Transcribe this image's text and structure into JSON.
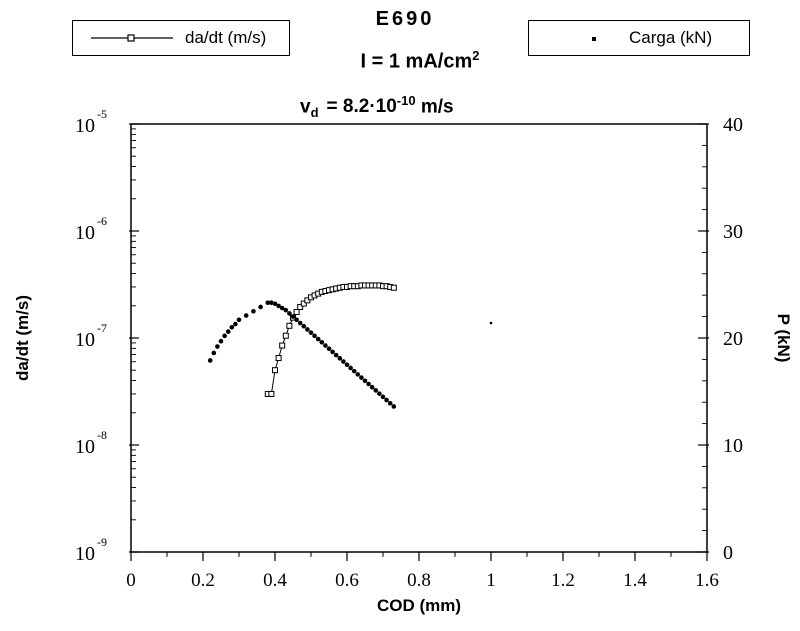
{
  "chart_data": {
    "type": "scatter",
    "title": "E690",
    "subtitle_current": "I = 1 mA/cm",
    "subtitle_current_sup": "2",
    "subtitle_velocity_prefix": "v",
    "subtitle_velocity_sub": "d",
    "subtitle_velocity_value": "=  8.2·10",
    "subtitle_velocity_exp": "-10",
    "subtitle_velocity_unit": " m/s",
    "xlabel": "COD  (mm)",
    "ylabel_left": "da/dt  (m/s)",
    "ylabel_right": "P  (kN)",
    "xlim": [
      0,
      1.6
    ],
    "x_ticks": [
      "0",
      "0.2",
      "0.4",
      "0.6",
      "0.8",
      "1",
      "1.2",
      "1.4",
      "1.6"
    ],
    "ylim_left": [
      1e-09,
      1e-05
    ],
    "y_left_scale": "log",
    "y_left_ticks": [
      {
        "base": "10",
        "exp": "-9"
      },
      {
        "base": "10",
        "exp": "-8"
      },
      {
        "base": "10",
        "exp": "-7"
      },
      {
        "base": "10",
        "exp": "-6"
      },
      {
        "base": "10",
        "exp": "-5"
      }
    ],
    "ylim_right": [
      0,
      40
    ],
    "y_right_ticks": [
      "0",
      "10",
      "20",
      "30",
      "40"
    ],
    "legend": [
      {
        "label": "da/dt (m/s)",
        "marker": "open-square-line",
        "axis": "left"
      },
      {
        "label": "Carga (kN)",
        "marker": "filled-dot",
        "axis": "right"
      }
    ],
    "series": [
      {
        "name": "da/dt (m/s)",
        "axis": "left",
        "x": [
          0.38,
          0.39,
          0.4,
          0.41,
          0.42,
          0.43,
          0.44,
          0.45,
          0.46,
          0.47,
          0.48,
          0.49,
          0.5,
          0.51,
          0.52,
          0.53,
          0.54,
          0.55,
          0.56,
          0.57,
          0.58,
          0.59,
          0.6,
          0.61,
          0.62,
          0.63,
          0.64,
          0.65,
          0.66,
          0.67,
          0.68,
          0.69,
          0.7,
          0.71,
          0.72,
          0.73
        ],
        "y": [
          3e-08,
          3e-08,
          5e-08,
          6.5e-08,
          8.5e-08,
          1.05e-07,
          1.3e-07,
          1.55e-07,
          1.75e-07,
          1.95e-07,
          2.1e-07,
          2.25e-07,
          2.4e-07,
          2.5e-07,
          2.6e-07,
          2.7e-07,
          2.75e-07,
          2.8e-07,
          2.85e-07,
          2.9e-07,
          2.95e-07,
          3e-07,
          3e-07,
          3.05e-07,
          3.05e-07,
          3.05e-07,
          3.1e-07,
          3.1e-07,
          3.1e-07,
          3.1e-07,
          3.1e-07,
          3.1e-07,
          3.05e-07,
          3.05e-07,
          3e-07,
          2.95e-07
        ]
      },
      {
        "name": "Carga (kN)",
        "axis": "right",
        "x": [
          0.22,
          0.23,
          0.24,
          0.25,
          0.26,
          0.27,
          0.28,
          0.29,
          0.3,
          0.32,
          0.34,
          0.36,
          0.38,
          0.39,
          0.4,
          0.41,
          0.42,
          0.43,
          0.44,
          0.45,
          0.46,
          0.47,
          0.48,
          0.49,
          0.5,
          0.51,
          0.52,
          0.53,
          0.54,
          0.55,
          0.56,
          0.57,
          0.58,
          0.59,
          0.6,
          0.61,
          0.62,
          0.63,
          0.64,
          0.65,
          0.66,
          0.67,
          0.68,
          0.69,
          0.7,
          0.71,
          0.72,
          0.73
        ],
        "y": [
          17.9,
          18.6,
          19.2,
          19.7,
          20.2,
          20.6,
          21.0,
          21.3,
          21.7,
          22.1,
          22.5,
          22.9,
          23.3,
          23.3,
          23.2,
          23.0,
          22.8,
          22.6,
          22.3,
          22.0,
          21.7,
          21.4,
          21.1,
          20.8,
          20.5,
          20.2,
          19.9,
          19.6,
          19.3,
          19.0,
          18.7,
          18.4,
          18.1,
          17.8,
          17.5,
          17.2,
          16.9,
          16.6,
          16.3,
          16.0,
          15.7,
          15.4,
          15.1,
          14.8,
          14.5,
          14.2,
          13.9,
          13.6
        ]
      },
      {
        "name": "",
        "axis": "right",
        "x": [
          1.0
        ],
        "y": [
          21.4
        ]
      }
    ]
  }
}
